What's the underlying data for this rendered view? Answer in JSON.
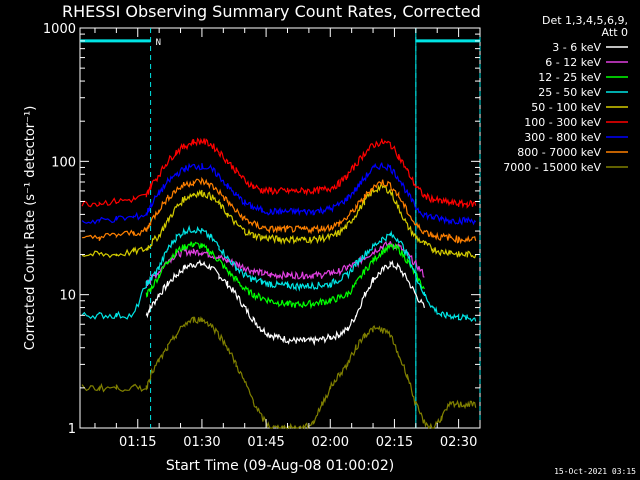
{
  "chart_data": {
    "type": "line",
    "title": "RHESSI Observing Summary Count Rates, Corrected",
    "xlabel": "Start Time (09-Aug-08 01:00:02)",
    "ylabel": "Corrected Count Rate (s⁻¹ detector⁻¹)",
    "y_scale": "log",
    "ylim": [
      1,
      1000
    ],
    "xlim_minutes": [
      1.5,
      95
    ],
    "x_ticks": [
      {
        "minute": 15,
        "label": "01:15"
      },
      {
        "minute": 30,
        "label": "01:30"
      },
      {
        "minute": 45,
        "label": "01:45"
      },
      {
        "minute": 60,
        "label": "02:00"
      },
      {
        "minute": 75,
        "label": "02:15"
      },
      {
        "minute": 90,
        "label": "02:30"
      }
    ],
    "y_ticks": [
      {
        "value": 1,
        "label": "1"
      },
      {
        "value": 10,
        "label": "10"
      },
      {
        "value": 100,
        "label": "100"
      },
      {
        "value": 1000,
        "label": "1000"
      }
    ],
    "legend_header": [
      "Det 1,3,4,5,6,9,",
      "Att 0"
    ],
    "legend_placement": "right",
    "footer_timestamp": "15-Oct-2021 03:15",
    "flag_bars": [
      {
        "x_start": 1.5,
        "x_end": 18,
        "value": 800,
        "label": "N",
        "color": "#00e5e5"
      },
      {
        "x_start": 80,
        "x_end": 95,
        "value": 800,
        "label": "",
        "color": "#00e5e5"
      }
    ],
    "dashed_verticals": [
      {
        "x": 18,
        "color": "#00e5e5"
      },
      {
        "x": 80,
        "color": "#00e5e5"
      },
      {
        "x": 95,
        "color": "#00e5e5"
      }
    ],
    "solid_verticals": [
      {
        "x": 80,
        "color": "#00e5e5"
      }
    ],
    "series_x_minutes": [
      2,
      6,
      10,
      14,
      17,
      18,
      20,
      22,
      24,
      26,
      28,
      30,
      32,
      34,
      36,
      38,
      40,
      42,
      44,
      46,
      48,
      50,
      52,
      54,
      56,
      58,
      60,
      62,
      64,
      66,
      68,
      70,
      72,
      74,
      76,
      78,
      80,
      82,
      84,
      86,
      88,
      90,
      92,
      94
    ],
    "series": [
      {
        "name": "3 - 6 keV",
        "color": "#ffffff",
        "values": [
          null,
          null,
          null,
          null,
          7,
          8,
          10,
          12,
          14,
          16,
          17,
          17,
          16,
          14,
          12,
          10,
          8,
          6.5,
          5.5,
          5,
          4.8,
          4.6,
          4.5,
          4.5,
          4.5,
          4.6,
          4.8,
          5,
          5.5,
          7,
          10,
          13,
          15,
          17,
          16,
          13,
          10,
          8,
          null,
          null,
          null,
          null,
          null,
          null
        ]
      },
      {
        "name": "6 - 12 keV",
        "color": "#e040e0",
        "values": [
          null,
          null,
          null,
          null,
          12,
          13,
          15,
          18,
          20,
          21,
          21,
          21,
          20,
          19,
          18,
          17,
          16,
          15,
          14.5,
          14,
          14,
          14,
          14,
          14,
          14,
          14,
          14.5,
          15,
          16,
          17,
          19,
          21,
          23,
          24,
          23,
          20,
          17,
          14,
          null,
          null,
          null,
          null,
          null,
          null
        ]
      },
      {
        "name": "12 - 25 keV",
        "color": "#00ff00",
        "values": [
          null,
          null,
          null,
          null,
          10,
          11,
          14,
          18,
          21,
          23,
          24,
          23,
          21,
          18,
          15,
          13,
          11,
          10,
          9.5,
          9,
          8.7,
          8.5,
          8.4,
          8.5,
          8.6,
          8.8,
          9,
          9.5,
          10,
          12,
          15,
          18,
          21,
          23,
          22,
          18,
          14,
          11,
          null,
          null,
          null,
          null,
          null,
          null
        ]
      },
      {
        "name": "25 - 50 keV",
        "color": "#00e5e5",
        "values": [
          7,
          7,
          7,
          7,
          12,
          13,
          16,
          22,
          27,
          30,
          31,
          30,
          27,
          23,
          19,
          16,
          14,
          13,
          12.5,
          12,
          11.8,
          11.7,
          11.6,
          11.6,
          11.7,
          11.8,
          12,
          13,
          14,
          17,
          20,
          23,
          26,
          28,
          26,
          20,
          14,
          10,
          8,
          7,
          7,
          6.8,
          6.7,
          6.6
        ]
      },
      {
        "name": "50 - 100 keV",
        "color": "#d4cc00",
        "values": [
          20,
          20,
          20,
          21,
          22,
          24,
          28,
          36,
          45,
          53,
          57,
          58,
          55,
          48,
          40,
          34,
          30,
          28,
          27,
          26.5,
          26,
          26,
          26,
          26,
          26,
          26.5,
          27,
          29,
          33,
          40,
          50,
          60,
          65,
          60,
          45,
          33,
          27,
          24,
          22,
          21,
          21,
          20,
          20,
          20
        ]
      },
      {
        "name": "100 - 300 keV",
        "color": "#ff0000",
        "values": [
          48,
          49,
          50,
          52,
          55,
          65,
          80,
          100,
          118,
          130,
          140,
          142,
          135,
          118,
          100,
          85,
          72,
          65,
          61,
          60,
          60,
          60,
          60,
          60,
          60,
          61,
          63,
          68,
          78,
          95,
          115,
          132,
          140,
          135,
          110,
          85,
          65,
          55,
          52,
          50,
          49,
          48,
          48,
          48
        ]
      },
      {
        "name": "300 - 800 keV",
        "color": "#0000ff",
        "values": [
          35,
          36,
          37,
          38,
          40,
          47,
          58,
          70,
          80,
          88,
          92,
          92,
          88,
          78,
          65,
          56,
          49,
          45,
          43,
          42,
          42,
          42,
          42,
          42,
          42,
          43,
          44,
          47,
          53,
          62,
          75,
          88,
          94,
          90,
          75,
          58,
          45,
          40,
          38,
          37,
          36,
          36,
          36,
          36
        ]
      },
      {
        "name": "800 - 7000 keV",
        "color": "#ff8000",
        "values": [
          26,
          27,
          28,
          29,
          30,
          35,
          44,
          53,
          61,
          67,
          70,
          71,
          67,
          59,
          50,
          42,
          37,
          34,
          32,
          31,
          31,
          31,
          31,
          31,
          31,
          31.5,
          32,
          34,
          38,
          45,
          54,
          64,
          70,
          67,
          55,
          42,
          33,
          30,
          28,
          27,
          27,
          26,
          26,
          26
        ]
      },
      {
        "name": "7000 - 15000 keV",
        "color": "#808000",
        "values": [
          2,
          2,
          2,
          2,
          2,
          2.5,
          3.2,
          4,
          5,
          6,
          6.5,
          6.5,
          6,
          5,
          4,
          3,
          2.2,
          1.6,
          1.2,
          1,
          1,
          1,
          1,
          1,
          1.1,
          1.5,
          2,
          2.5,
          3,
          4,
          5,
          5.5,
          5.5,
          5,
          3.5,
          2.5,
          1.5,
          1.1,
          1,
          1.2,
          1.5,
          1.5,
          1.5,
          1.5
        ]
      }
    ]
  }
}
